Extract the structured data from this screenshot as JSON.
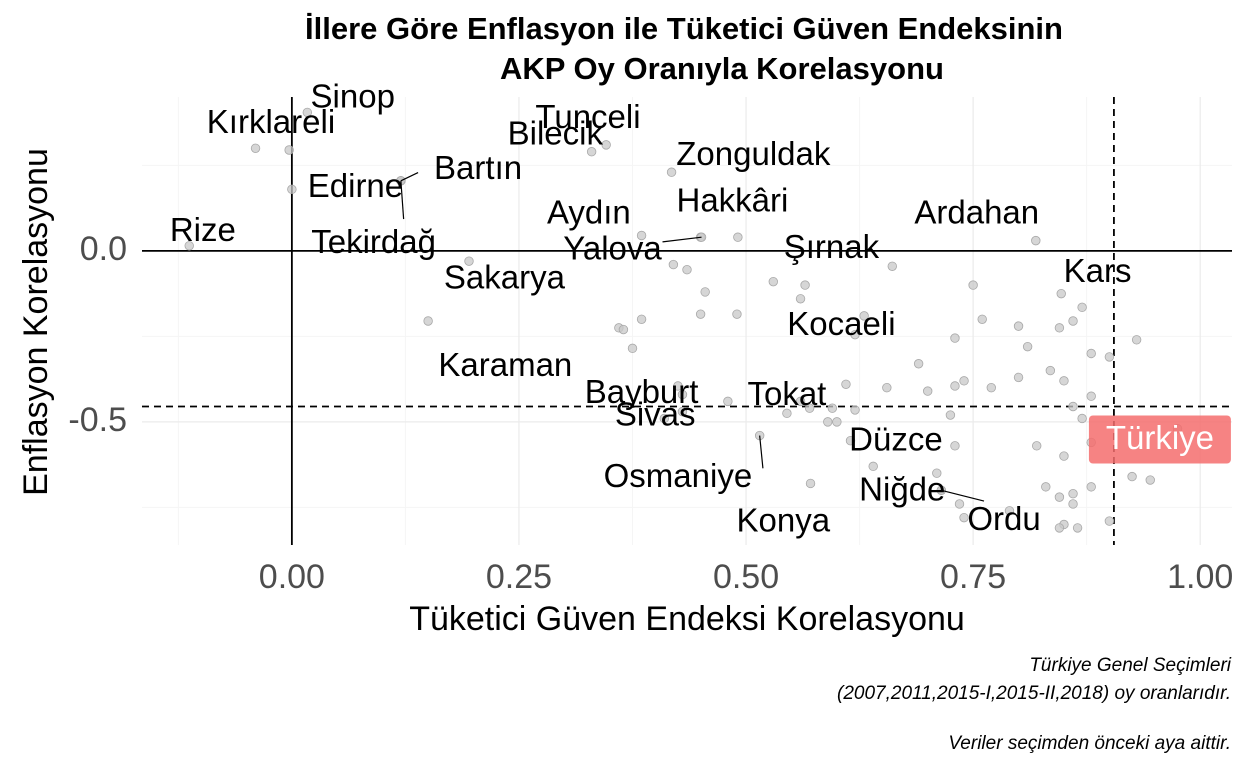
{
  "chart_data": {
    "type": "scatter",
    "title": [
      "İllere Göre Enflasyon ile Tüketici Güven Endeksinin",
      "AKP Oy Oranıyla Korelasyonu"
    ],
    "xlabel": "Tüketici Güven Endeksi Korelasyonu",
    "ylabel": "Enflasyon Korelasyonu",
    "xlim": [
      -0.165,
      1.035
    ],
    "ylim": [
      -0.86,
      0.45
    ],
    "x_ticks": [
      0.0,
      0.25,
      0.5,
      0.75,
      1.0
    ],
    "x_tick_labels": [
      "0.00",
      "0.25",
      "0.50",
      "0.75",
      "1.00"
    ],
    "y_ticks": [
      0.0,
      -0.5
    ],
    "y_tick_labels": [
      "0.0",
      "-0.5"
    ],
    "grid": true,
    "reference_lines": {
      "hline_solid": 0.0,
      "vline_solid": 0.0,
      "hline_dashed": -0.455,
      "vline_dashed": 0.905
    },
    "highlight": {
      "label": "Türkiye",
      "x": 0.905,
      "y": -0.455,
      "color": "#f46d6d"
    },
    "labeled_points": [
      {
        "name": "Kırklareli",
        "x": -0.003,
        "y": 0.295
      },
      {
        "name": "Sinop",
        "x": 0.017,
        "y": 0.405
      },
      {
        "name": "Bartın",
        "x": 0.12,
        "y": 0.205
      },
      {
        "name": "Edirne",
        "x": 0.12,
        "y": 0.205
      },
      {
        "name": "Tekirdağ",
        "x": 0.12,
        "y": 0.205
      },
      {
        "name": "Bilecik",
        "x": 0.33,
        "y": 0.29
      },
      {
        "name": "Tunceli",
        "x": 0.346,
        "y": 0.31
      },
      {
        "name": "Zonguldak",
        "x": 0.418,
        "y": 0.23
      },
      {
        "name": "Rize",
        "x": -0.113,
        "y": 0.015
      },
      {
        "name": "Aydın",
        "x": 0.385,
        "y": 0.045
      },
      {
        "name": "Hakkâri",
        "x": 0.491,
        "y": 0.04
      },
      {
        "name": "Yalova",
        "x": 0.451,
        "y": 0.04
      },
      {
        "name": "Ardahan",
        "x": 0.819,
        "y": 0.03
      },
      {
        "name": "Şırnak",
        "x": 0.661,
        "y": -0.045
      },
      {
        "name": "Kars",
        "x": 0.847,
        "y": -0.125
      },
      {
        "name": "Sakarya",
        "x": 0.15,
        "y": -0.205
      },
      {
        "name": "Kocaeli",
        "x": 0.62,
        "y": -0.245
      },
      {
        "name": "Karaman",
        "x": 0.365,
        "y": -0.23
      },
      {
        "name": "Bayburt",
        "x": 0.425,
        "y": -0.395
      },
      {
        "name": "Tokat",
        "x": 0.545,
        "y": -0.475
      },
      {
        "name": "Sivas",
        "x": 0.43,
        "y": -0.47
      },
      {
        "name": "Düzce",
        "x": 0.615,
        "y": -0.555
      },
      {
        "name": "Osmaniye",
        "x": 0.515,
        "y": -0.54
      },
      {
        "name": "Niğde",
        "x": 0.715,
        "y": -0.7
      },
      {
        "name": "Ordu",
        "x": 0.715,
        "y": -0.7
      },
      {
        "name": "Konya",
        "x": 0.571,
        "y": -0.68
      }
    ],
    "other_points": [
      [
        -0.04,
        0.3
      ],
      [
        0.0,
        0.18
      ],
      [
        0.195,
        -0.03
      ],
      [
        0.42,
        -0.04
      ],
      [
        0.435,
        -0.055
      ],
      [
        0.45,
        0.04
      ],
      [
        0.36,
        -0.225
      ],
      [
        0.375,
        -0.285
      ],
      [
        0.385,
        -0.2
      ],
      [
        0.45,
        -0.185
      ],
      [
        0.49,
        -0.185
      ],
      [
        0.455,
        -0.12
      ],
      [
        0.53,
        -0.09
      ],
      [
        0.56,
        -0.14
      ],
      [
        0.565,
        -0.1
      ],
      [
        0.63,
        -0.19
      ],
      [
        0.69,
        -0.33
      ],
      [
        0.75,
        -0.1
      ],
      [
        0.76,
        -0.2
      ],
      [
        0.8,
        -0.22
      ],
      [
        0.81,
        -0.28
      ],
      [
        0.835,
        -0.35
      ],
      [
        0.845,
        -0.225
      ],
      [
        0.86,
        -0.205
      ],
      [
        0.87,
        -0.165
      ],
      [
        0.88,
        -0.3
      ],
      [
        0.9,
        -0.31
      ],
      [
        0.93,
        -0.26
      ],
      [
        0.73,
        -0.255
      ],
      [
        0.73,
        -0.395
      ],
      [
        0.74,
        -0.38
      ],
      [
        0.77,
        -0.4
      ],
      [
        0.8,
        -0.37
      ],
      [
        0.85,
        -0.38
      ],
      [
        0.88,
        -0.425
      ],
      [
        0.86,
        -0.455
      ],
      [
        0.87,
        -0.49
      ],
      [
        0.88,
        -0.56
      ],
      [
        0.85,
        -0.6
      ],
      [
        0.82,
        -0.57
      ],
      [
        0.73,
        -0.57
      ],
      [
        0.725,
        -0.48
      ],
      [
        0.7,
        -0.41
      ],
      [
        0.655,
        -0.4
      ],
      [
        0.61,
        -0.39
      ],
      [
        0.62,
        -0.465
      ],
      [
        0.595,
        -0.46
      ],
      [
        0.59,
        -0.5
      ],
      [
        0.57,
        -0.46
      ],
      [
        0.6,
        -0.5
      ],
      [
        0.48,
        -0.44
      ],
      [
        0.43,
        -0.42
      ],
      [
        0.41,
        -0.49
      ],
      [
        0.56,
        -0.44
      ],
      [
        0.64,
        -0.63
      ],
      [
        0.71,
        -0.65
      ],
      [
        0.79,
        -0.76
      ],
      [
        0.83,
        -0.69
      ],
      [
        0.845,
        -0.72
      ],
      [
        0.86,
        -0.71
      ],
      [
        0.88,
        -0.69
      ],
      [
        0.86,
        -0.74
      ],
      [
        0.85,
        -0.8
      ],
      [
        0.845,
        -0.81
      ],
      [
        0.865,
        -0.81
      ],
      [
        0.9,
        -0.79
      ],
      [
        0.925,
        -0.66
      ],
      [
        0.945,
        -0.67
      ],
      [
        0.975,
        -0.52
      ],
      [
        0.735,
        -0.74
      ],
      [
        0.74,
        -0.78
      ]
    ]
  },
  "caption": {
    "line1": "Türkiye Genel Seçimleri",
    "line2": "(2007,2011,2015-I,2015-II,2018) oy oranlarıdır.",
    "line3": "Veriler seçimden önceki aya aittir."
  }
}
